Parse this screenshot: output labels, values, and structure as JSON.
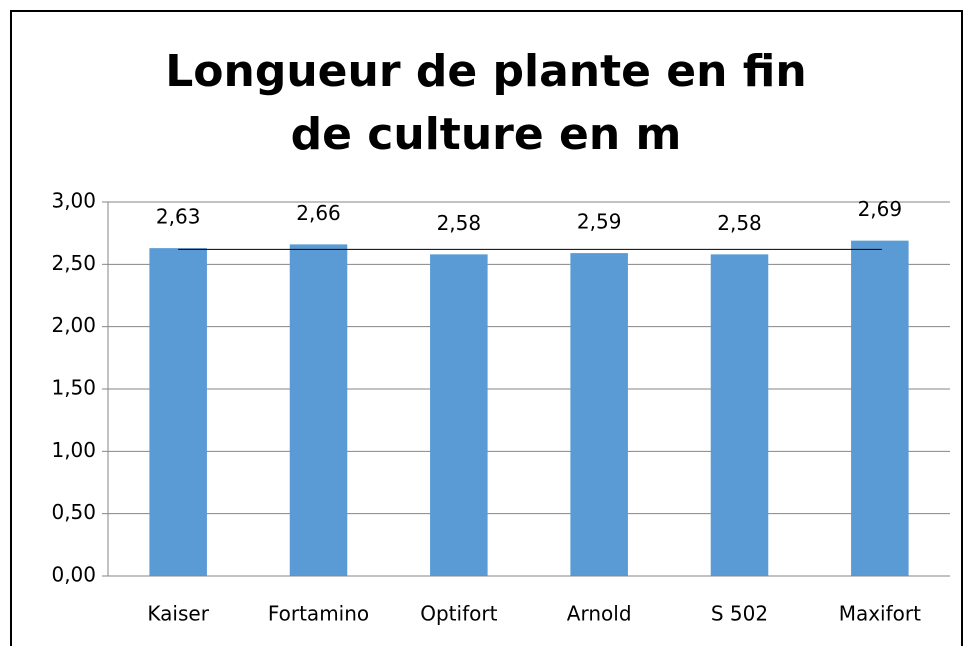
{
  "chart_data": {
    "type": "bar",
    "title": "Longueur de plante en fin de culture en m",
    "categories": [
      "Kaiser",
      "Fortamino",
      "Optifort",
      "Arnold",
      "S 502",
      "Maxifort"
    ],
    "values": [
      2.63,
      2.66,
      2.58,
      2.59,
      2.58,
      2.69
    ],
    "value_labels": [
      "2,63",
      "2,66",
      "2,58",
      "2,59",
      "2,58",
      "2,69"
    ],
    "color": "#5b9bd5",
    "hline": 2.62,
    "ylim": [
      0,
      3
    ],
    "yticks": [
      {
        "value": 0,
        "label": "0,00"
      },
      {
        "value": 0.5,
        "label": "0,50"
      },
      {
        "value": 1,
        "label": "1,00"
      },
      {
        "value": 1.5,
        "label": "1,50"
      },
      {
        "value": 2,
        "label": "2,00"
      },
      {
        "value": 2.5,
        "label": "2,50"
      },
      {
        "value": 3,
        "label": "3,00"
      }
    ],
    "grid": true
  }
}
